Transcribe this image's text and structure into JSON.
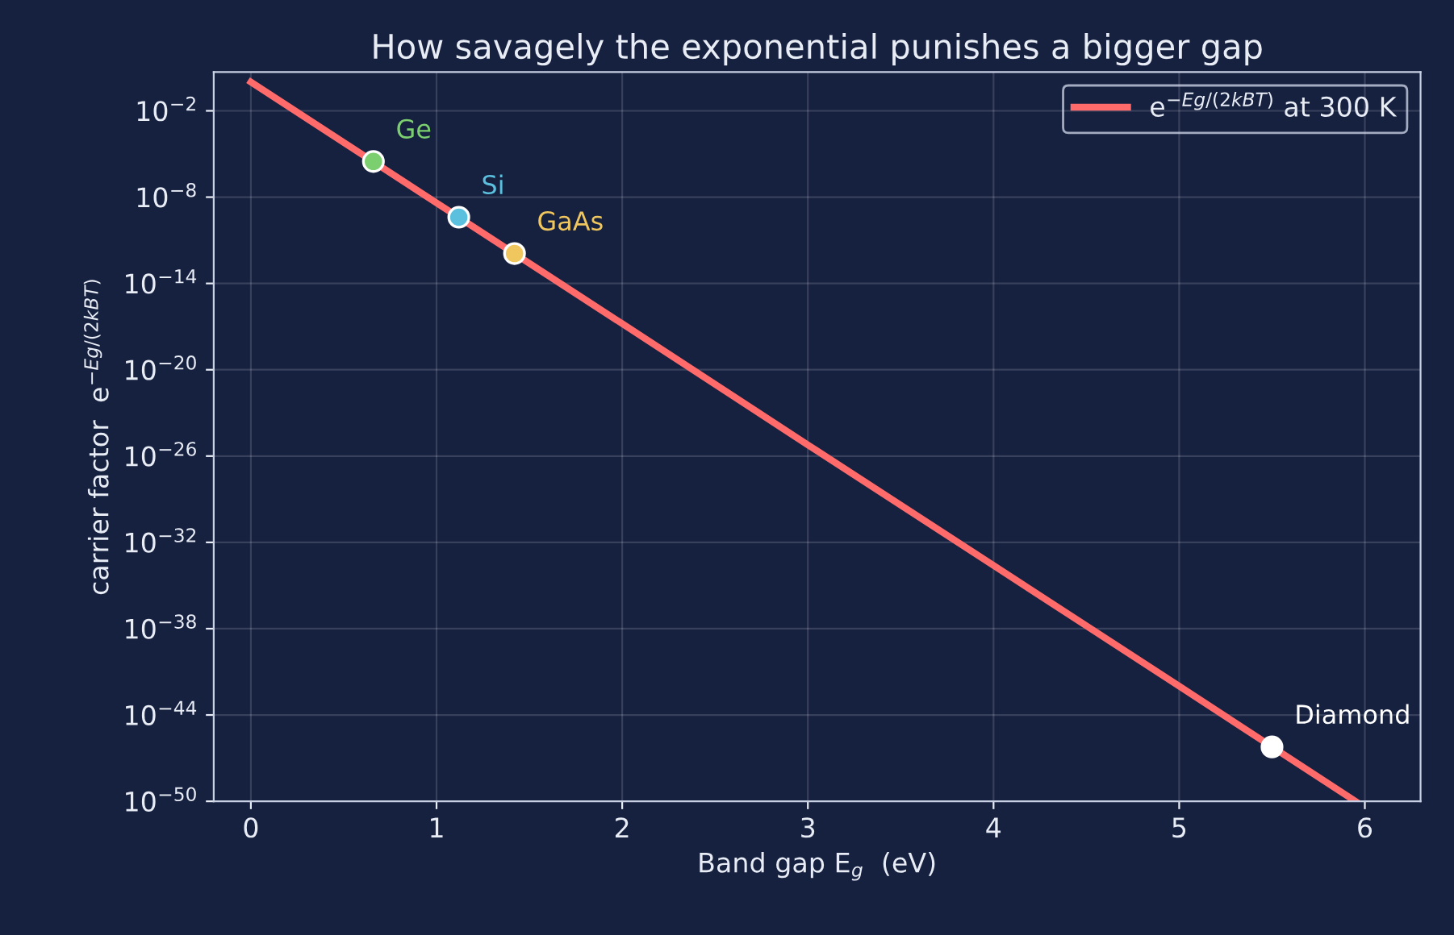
{
  "chart_data": {
    "type": "line",
    "title": "How savagely the exponential punishes a bigger gap",
    "xlabel": "Band gap E$_{g}$  (eV)",
    "ylabel": "carrier factor  e$^{−Eg/(2kBT)}$",
    "log": "y",
    "xlim": [
      -0.2,
      6.3
    ],
    "xticks": [
      0,
      1,
      2,
      3,
      4,
      5,
      6
    ],
    "ylim": [
      1e-50,
      5
    ],
    "yticks": [
      {
        "value": 0.01,
        "label": "10$^{−2}$"
      },
      {
        "value": 1e-08,
        "label": "10$^{−8}$"
      },
      {
        "value": 1e-14,
        "label": "10$^{−14}$"
      },
      {
        "value": 1e-20,
        "label": "10$^{−20}$"
      },
      {
        "value": 1e-26,
        "label": "10$^{−26}$"
      },
      {
        "value": 1e-32,
        "label": "10$^{−32}$"
      },
      {
        "value": 1e-38,
        "label": "10$^{−38}$"
      },
      {
        "value": 1e-44,
        "label": "10$^{−44}$"
      },
      {
        "value": 1e-50,
        "label": "10$^{−50}$"
      }
    ],
    "grid": true,
    "legend": "top right",
    "series": [
      {
        "name": "e$^{−Eg/(2kBT)}$ at 300 K",
        "type": "line",
        "color": "#ff6b6b",
        "x": [
          0,
          1,
          2,
          3,
          4,
          5,
          5.95
        ],
        "values": [
          1,
          4e-09,
          1.6e-17,
          6e-26,
          2.5e-34,
          1e-42,
          1e-50
        ]
      },
      {
        "name": "Ge",
        "type": "scatter",
        "color": "#7ccf6e",
        "x": [
          0.66
        ],
        "values": [
          3e-06
        ]
      },
      {
        "name": "Si",
        "type": "scatter",
        "color": "#5bc0de",
        "x": [
          1.12
        ],
        "values": [
          4e-10
        ]
      },
      {
        "name": "GaAs",
        "type": "scatter",
        "color": "#f0c75e",
        "x": [
          1.42
        ],
        "values": [
          1.2e-12
        ]
      },
      {
        "name": "Diamond",
        "type": "scatter",
        "color": "#ffffff",
        "x": [
          5.5
        ],
        "values": [
          6e-47
        ]
      }
    ]
  }
}
